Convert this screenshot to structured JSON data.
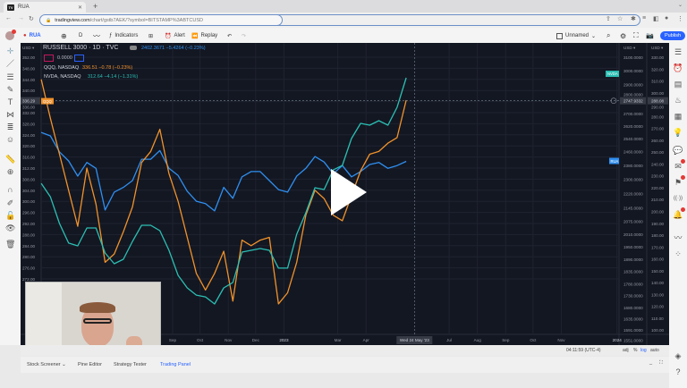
{
  "browser": {
    "tab_title": "RUA",
    "url_host": "tradingview.com",
    "url_path": "/chart/gstb7AEK/?symbol=BITSTAMP%3ABTCUSD"
  },
  "toolbar": {
    "symbol": "RUA",
    "interval": "D",
    "indicators": "Indicators",
    "alert": "Alert",
    "replay": "Replay",
    "layout_name": "Unnamed",
    "publish": "Publish"
  },
  "legend": {
    "main_title": "RUSSELL 3000 · 1D · TVC",
    "main_values": "2402.3671  −5.4264 (−0.23%)",
    "compare_value": "0.0000",
    "qqq_name": "QQQ, NASDAQ",
    "qqq_values": "336.51  −0.78 (−0.23%)",
    "nvda_name": "NVDA, NASDAQ",
    "nvda_values": "312.64  −4.14 (−1.31%)"
  },
  "axes": {
    "currency_left": "USD ▾",
    "currency_right1": "USD ▾",
    "currency_right2": "USD ▾",
    "crosshair_left": "336.29",
    "crosshair_right1": "2747.9332",
    "crosshair_right2": "288.08",
    "crosshair_date": "Wed 24 May '23",
    "tag_qqq": "QQQ",
    "tag_nvda": "NVDA",
    "tag_rua": "RUA"
  },
  "status": {
    "time": "04:11:59 (UTC-4)",
    "adj": "adj",
    "percent": "%",
    "log": "log",
    "auto": "auto"
  },
  "bottom_tabs": [
    "Stock Screener ⌄",
    "Pine Editor",
    "Strategy Tester",
    "Trading Panel"
  ],
  "colors": {
    "qqq": "#f0922b",
    "nvda": "#2bbfb3",
    "rua": "#2f8ff0",
    "background": "#131722",
    "publish": "#2962ff"
  },
  "chart_data": {
    "type": "line",
    "x_type": "date",
    "left_axis_ticks": [
      352,
      348,
      344,
      340,
      336,
      332,
      328,
      324,
      320,
      316,
      312,
      308,
      304,
      300,
      296,
      292,
      288,
      284,
      280,
      276,
      272
    ],
    "right_axis1_ticks": [
      3100,
      3000,
      2900,
      2800,
      2700,
      2620,
      2540,
      2460,
      2380,
      2300,
      2220,
      2145,
      2075,
      2010,
      1950,
      1890,
      1835,
      1780,
      1730,
      1680,
      1635,
      1591,
      1551
    ],
    "right_axis1_scale": "log",
    "right_axis2_ticks": [
      330,
      320,
      310,
      300,
      290,
      280,
      270,
      260,
      250,
      240,
      230,
      220,
      210,
      200,
      190,
      180,
      170,
      160,
      150,
      140,
      130,
      120,
      110,
      100
    ],
    "time_ticks": [
      {
        "label": "Sep",
        "date": "2022-09-01"
      },
      {
        "label": "Oct",
        "date": "2022-10-01"
      },
      {
        "label": "Nov",
        "date": "2022-11-01"
      },
      {
        "label": "Dec",
        "date": "2022-12-01"
      },
      {
        "label": "2023",
        "date": "2023-01-01"
      },
      {
        "label": "Mar",
        "date": "2023-03-01"
      },
      {
        "label": "Apr",
        "date": "2023-04-01"
      },
      {
        "label": "Jul",
        "date": "2023-07-01"
      },
      {
        "label": "Aug",
        "date": "2023-08-01"
      },
      {
        "label": "Sep",
        "date": "2023-09-01"
      },
      {
        "label": "Oct",
        "date": "2023-10-01"
      },
      {
        "label": "Nov",
        "date": "2023-11-01"
      },
      {
        "label": "2024",
        "date": "2024-01-01"
      }
    ],
    "x": [
      "2022-04-10",
      "2022-04-20",
      "2022-04-30",
      "2022-05-10",
      "2022-05-20",
      "2022-05-30",
      "2022-06-09",
      "2022-06-19",
      "2022-06-29",
      "2022-07-09",
      "2022-07-19",
      "2022-07-29",
      "2022-08-08",
      "2022-08-18",
      "2022-08-28",
      "2022-09-07",
      "2022-09-17",
      "2022-09-27",
      "2022-10-07",
      "2022-10-17",
      "2022-10-27",
      "2022-11-06",
      "2022-11-16",
      "2022-11-26",
      "2022-12-06",
      "2022-12-16",
      "2022-12-26",
      "2023-01-05",
      "2023-01-15",
      "2023-01-25",
      "2023-02-04",
      "2023-02-14",
      "2023-02-24",
      "2023-03-06",
      "2023-03-16",
      "2023-03-26",
      "2023-04-05",
      "2023-04-15",
      "2023-04-25",
      "2023-05-05",
      "2023-05-15"
    ],
    "series": [
      {
        "name": "RUSSELL 3000",
        "axis": "right1",
        "values": [
          2579,
          2557,
          2459,
          2405,
          2317,
          2396,
          2362,
          2133,
          2228,
          2254,
          2292,
          2415,
          2415,
          2467,
          2362,
          2321,
          2233,
          2179,
          2166,
          2128,
          2254,
          2195,
          2313,
          2343,
          2343,
          2292,
          2242,
          2228,
          2317,
          2362,
          2431,
          2399,
          2331,
          2378,
          2313,
          2343,
          2384,
          2396,
          2362,
          2378,
          2402.37
        ]
      },
      {
        "name": "QQQ, NASDAQ",
        "axis": "left",
        "values": [
          344,
          330,
          317,
          304,
          291,
          312,
          299,
          278,
          281,
          289,
          298,
          314,
          318,
          326,
          310,
          300,
          287,
          274,
          268,
          274,
          282,
          264,
          286,
          284,
          286,
          287,
          263,
          267,
          278,
          295,
          304,
          301,
          295,
          293,
          302,
          311,
          317,
          318,
          321,
          323,
          336.51
        ]
      },
      {
        "name": "NVDA, NASDAQ",
        "axis": "right2",
        "values": [
          223.7,
          212.4,
          189.8,
          173.3,
          171.0,
          186.1,
          186.1,
          165.0,
          155.9,
          159.7,
          174.8,
          188.3,
          188.3,
          183.8,
          167.2,
          146.1,
          135.6,
          129.5,
          128.0,
          122.0,
          135.6,
          140.1,
          165.7,
          167.2,
          168.7,
          167.2,
          152.2,
          152.2,
          180.8,
          198.9,
          220.0,
          218.5,
          235.0,
          238.8,
          261.4,
          274.2,
          272.7,
          276.5,
          272.7,
          287.8,
          312.64
        ]
      }
    ],
    "crosshair": {
      "date": "2023-05-24",
      "value_left": 336.29
    },
    "grid": true
  }
}
